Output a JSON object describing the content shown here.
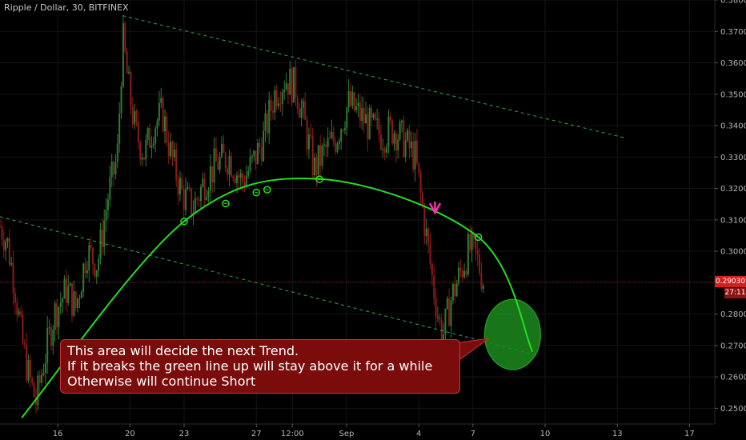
{
  "header": {
    "symbol_title": "Ripple / Dollar, 30, BITFINEX"
  },
  "colors": {
    "background": "#000000",
    "candle_up": "#2e7d32",
    "candle_down": "#8e1a1a",
    "trend_line": "#2fa84f",
    "arc": "#22e022",
    "touch_marker": "#22e022",
    "arrow": "#ff2fae",
    "ellipse_fill": "#1e8a1e",
    "price_tag": "#d21f1f",
    "callout_bg": "#7a0c0c"
  },
  "price_tag": {
    "price": "0.29030",
    "countdown": "27:11"
  },
  "callout": {
    "lines": [
      "This area will decide the next Trend.",
      "If it breaks the green line up will stay above it for a while",
      "Otherwise will continue Short"
    ]
  },
  "chart_data": {
    "type": "candlestick",
    "title": "Ripple / Dollar, 30, BITFINEX",
    "ylim": [
      0.245,
      0.38
    ],
    "y_ticks": [
      "0.38000",
      "0.37000",
      "0.36000",
      "0.35000",
      "0.34000",
      "0.33000",
      "0.32000",
      "0.31000",
      "0.30000",
      "0.29000",
      "0.28000",
      "0.27000",
      "0.26000",
      "0.25000"
    ],
    "y_tick_values": [
      0.38,
      0.37,
      0.36,
      0.35,
      0.34,
      0.33,
      0.32,
      0.31,
      0.3,
      0.29,
      0.28,
      0.27,
      0.26,
      0.25
    ],
    "x_ticks": [
      "16",
      "20",
      "23",
      "27",
      "12:00",
      "Sep",
      "4",
      "7",
      "10",
      "13",
      "17"
    ],
    "x_tick_days": [
      0,
      4,
      7,
      11,
      13,
      16,
      20,
      23,
      27,
      31,
      35
    ],
    "xlim_days": [
      -3.2,
      36.4
    ],
    "last_price": 0.2903,
    "price_path": [
      {
        "day": -3.2,
        "price": 0.308
      },
      {
        "day": -2.8,
        "price": 0.303
      },
      {
        "day": -2.4,
        "price": 0.29
      },
      {
        "day": -2.0,
        "price": 0.272
      },
      {
        "day": -1.6,
        "price": 0.26
      },
      {
        "day": -1.2,
        "price": 0.252
      },
      {
        "day": -0.8,
        "price": 0.264
      },
      {
        "day": -0.2,
        "price": 0.28
      },
      {
        "day": 0.5,
        "price": 0.288
      },
      {
        "day": 1.0,
        "price": 0.282
      },
      {
        "day": 1.6,
        "price": 0.3
      },
      {
        "day": 2.2,
        "price": 0.296
      },
      {
        "day": 2.8,
        "price": 0.318
      },
      {
        "day": 3.3,
        "price": 0.33
      },
      {
        "day": 3.6,
        "price": 0.368
      },
      {
        "day": 3.9,
        "price": 0.353
      },
      {
        "day": 4.3,
        "price": 0.338
      },
      {
        "day": 4.8,
        "price": 0.331
      },
      {
        "day": 5.3,
        "price": 0.34
      },
      {
        "day": 5.8,
        "price": 0.344
      },
      {
        "day": 6.3,
        "price": 0.33
      },
      {
        "day": 6.9,
        "price": 0.318
      },
      {
        "day": 7.5,
        "price": 0.314
      },
      {
        "day": 8.1,
        "price": 0.322
      },
      {
        "day": 8.8,
        "price": 0.328
      },
      {
        "day": 9.5,
        "price": 0.33
      },
      {
        "day": 10.2,
        "price": 0.322
      },
      {
        "day": 10.8,
        "price": 0.328
      },
      {
        "day": 11.4,
        "price": 0.336
      },
      {
        "day": 12.0,
        "price": 0.35
      },
      {
        "day": 12.6,
        "price": 0.355
      },
      {
        "day": 13.2,
        "price": 0.352
      },
      {
        "day": 13.7,
        "price": 0.34
      },
      {
        "day": 14.2,
        "price": 0.326
      },
      {
        "day": 14.8,
        "price": 0.332
      },
      {
        "day": 15.4,
        "price": 0.336
      },
      {
        "day": 16.1,
        "price": 0.347
      },
      {
        "day": 16.8,
        "price": 0.343
      },
      {
        "day": 17.4,
        "price": 0.339
      },
      {
        "day": 18.0,
        "price": 0.337
      },
      {
        "day": 18.6,
        "price": 0.339
      },
      {
        "day": 19.2,
        "price": 0.335
      },
      {
        "day": 19.8,
        "price": 0.33
      },
      {
        "day": 20.3,
        "price": 0.31
      },
      {
        "day": 20.8,
        "price": 0.289
      },
      {
        "day": 21.3,
        "price": 0.272
      },
      {
        "day": 21.8,
        "price": 0.285
      },
      {
        "day": 22.3,
        "price": 0.293
      },
      {
        "day": 22.8,
        "price": 0.301
      },
      {
        "day": 23.2,
        "price": 0.298
      },
      {
        "day": 23.6,
        "price": 0.2903
      }
    ],
    "trend_upper": [
      {
        "day": 3.6,
        "price": 0.375
      },
      {
        "day": 31.5,
        "price": 0.336
      }
    ],
    "trend_lower": [
      {
        "day": -3.2,
        "price": 0.311
      },
      {
        "day": 26.5,
        "price": 0.267
      }
    ],
    "arc": [
      {
        "day": -2.0,
        "price": 0.247
      },
      {
        "day": 7.0,
        "price": 0.3095
      },
      {
        "day": 14.5,
        "price": 0.323
      },
      {
        "day": 23.3,
        "price": 0.3045
      },
      {
        "day": 26.3,
        "price": 0.268
      }
    ],
    "touch_points": [
      {
        "day": 7.0,
        "price": 0.3095
      },
      {
        "day": 9.3,
        "price": 0.3152
      },
      {
        "day": 11.0,
        "price": 0.3187
      },
      {
        "day": 11.6,
        "price": 0.3196
      },
      {
        "day": 14.5,
        "price": 0.3229
      },
      {
        "day": 23.3,
        "price": 0.3045
      }
    ],
    "down_arrow": {
      "day": 20.9,
      "price": 0.3125
    },
    "highlight_ellipse": {
      "day": 25.2,
      "price": 0.2735
    }
  }
}
